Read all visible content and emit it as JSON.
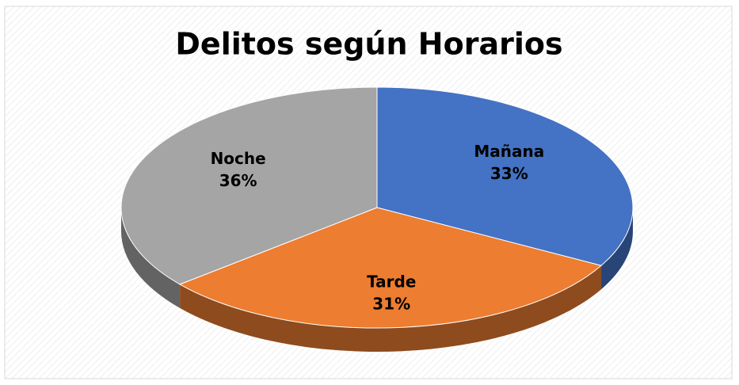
{
  "chart_data": {
    "type": "pie",
    "title": "Delitos según Horarios",
    "categories": [
      "Mañana",
      "Tarde",
      "Noche"
    ],
    "values": [
      33,
      31,
      36
    ],
    "value_labels": [
      "33%",
      "31%",
      "36%"
    ],
    "colors": [
      "#4472c4",
      "#ed7d31",
      "#a5a5a5"
    ]
  }
}
